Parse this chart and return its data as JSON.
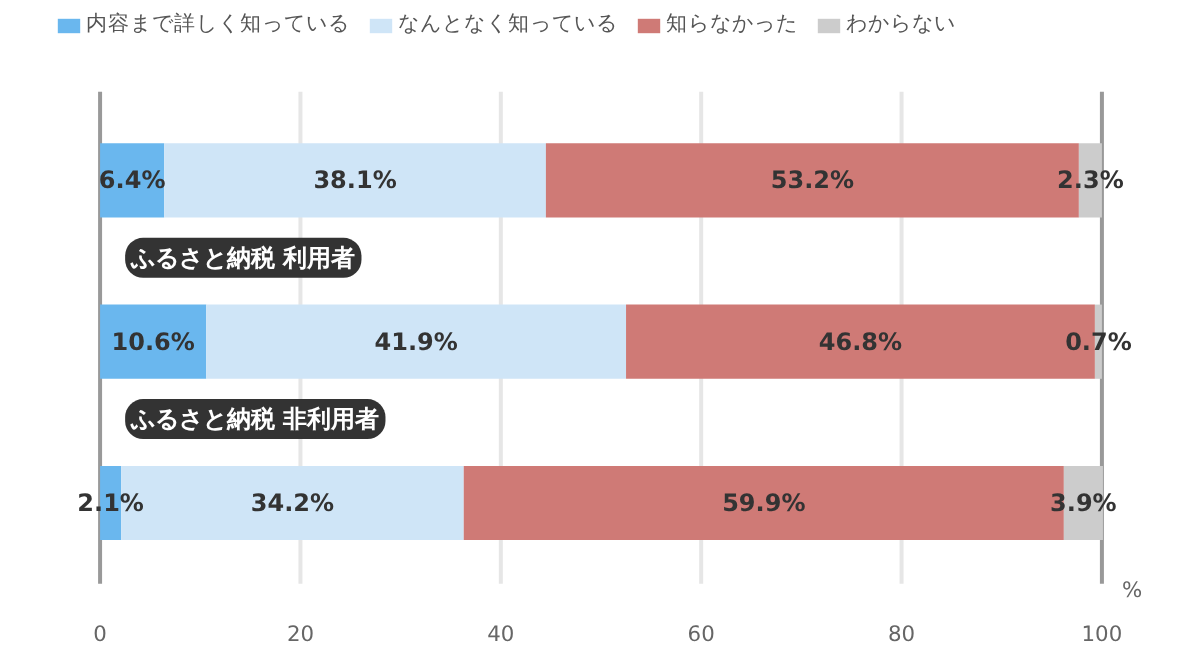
{
  "chart_data": {
    "type": "bar",
    "orientation": "horizontal",
    "stacked": true,
    "categories": [
      null,
      "ふるさと納税 利用者",
      "ふるさと納税 非利用者"
    ],
    "series": [
      {
        "name": "内容まで詳しく知っている",
        "color": "#6ab7ee",
        "values": [
          6.4,
          10.6,
          2.1
        ],
        "value_labels": [
          "6.4%",
          "10.6%",
          "2.1%"
        ]
      },
      {
        "name": "なんとなく知っている",
        "color": "#cfe5f7",
        "values": [
          38.1,
          41.9,
          34.2
        ],
        "value_labels": [
          "38.1%",
          "41.9%",
          "34.2%"
        ]
      },
      {
        "name": "知らなかった",
        "color": "#cf7a76",
        "values": [
          53.2,
          46.8,
          59.9
        ],
        "value_labels": [
          "53.2%",
          "46.8%",
          "59.9%"
        ]
      },
      {
        "name": "わからない",
        "color": "#cccccc",
        "values": [
          2.3,
          0.7,
          3.9
        ],
        "value_labels": [
          "2.3%",
          "0.7%",
          "3.9%"
        ]
      }
    ],
    "xlim": [
      0,
      100
    ],
    "xticks": [
      0,
      20,
      40,
      60,
      80,
      100
    ],
    "xlabel": "%",
    "grid": "x",
    "legend": "top left"
  }
}
